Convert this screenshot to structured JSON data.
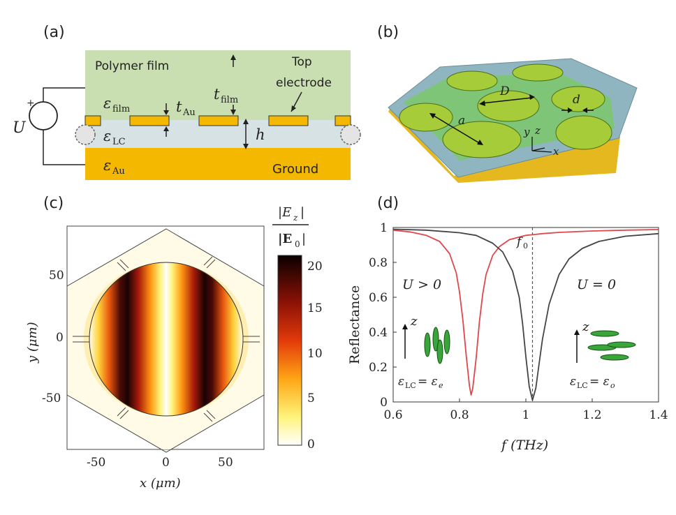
{
  "panels": {
    "a": {
      "label": "(a)",
      "polymer_label": "Polymer film",
      "top_electrode_label_1": "Top",
      "top_electrode_label_2": "electrode",
      "ground_label": "Ground",
      "voltage_label": "U",
      "voltage_sign": "+",
      "eps_film": "ε",
      "eps_film_sub": "film",
      "eps_lc": "ε",
      "eps_lc_sub": "LC",
      "eps_au": "ε",
      "eps_au_sub": "Au",
      "t_film": "t",
      "t_film_sub": "film",
      "t_au": "t",
      "t_au_sub": "Au",
      "h_label": "h"
    },
    "b": {
      "label": "(b)",
      "D_label": "D",
      "d_label": "d",
      "a_label": "a",
      "axis_x": "x",
      "axis_y": "y",
      "axis_z": "z"
    },
    "c": {
      "label": "(c)",
      "xlabel": "x (μm)",
      "ylabel": "y (μm)",
      "x_ticks": [
        "-50",
        "0",
        "50"
      ],
      "y_ticks": [
        "50",
        "0",
        "-50"
      ],
      "colorbar_title_num": "|E",
      "colorbar_title_num_sub": "z",
      "colorbar_title_num_end": "|",
      "colorbar_title_den": "|E",
      "colorbar_title_den_sub": "0",
      "colorbar_title_den_end": "|",
      "colorbar_ticks": [
        "20",
        "15",
        "10",
        "5",
        "0"
      ]
    },
    "d": {
      "label": "(d)",
      "f0_label": "f",
      "f0_sub": "0",
      "u_pos_label": "U > 0",
      "u_zero_label": "U = 0",
      "z_label": "z",
      "eq_e": "ε",
      "eq_e_sub": "LC",
      "eq_e_rhs": "= ε",
      "eq_e_rhs_sub": "e",
      "eq_o": "ε",
      "eq_o_sub": "LC",
      "eq_o_rhs": "= ε",
      "eq_o_rhs_sub": "o"
    }
  },
  "chart_data": {
    "type": "line",
    "xlabel": "f (THz)",
    "ylabel": "Reflectance",
    "xlim": [
      0.6,
      1.4
    ],
    "ylim": [
      0,
      1
    ],
    "x_ticks": [
      0.6,
      0.8,
      1.0,
      1.2,
      1.4
    ],
    "x_tick_labels": [
      "0.6",
      "0.8",
      "1",
      "1.2",
      "1.4"
    ],
    "y_ticks": [
      0,
      0.2,
      0.4,
      0.6,
      0.8,
      1
    ],
    "y_tick_labels": [
      "0",
      "0.2",
      "0.4",
      "0.6",
      "0.8",
      "1"
    ],
    "f0": 1.02,
    "series": [
      {
        "color": "#e0474c",
        "x": [
          0.6,
          0.65,
          0.7,
          0.74,
          0.77,
          0.79,
          0.8,
          0.81,
          0.82,
          0.83,
          0.835,
          0.84,
          0.85,
          0.86,
          0.87,
          0.88,
          0.9,
          0.92,
          0.95,
          1.0,
          1.05,
          1.1,
          1.2,
          1.3,
          1.4
        ],
        "y": [
          0.985,
          0.975,
          0.955,
          0.92,
          0.85,
          0.74,
          0.63,
          0.47,
          0.27,
          0.09,
          0.04,
          0.08,
          0.25,
          0.46,
          0.62,
          0.73,
          0.84,
          0.89,
          0.93,
          0.955,
          0.965,
          0.972,
          0.98,
          0.985,
          0.988
        ]
      },
      {
        "color": "#444444",
        "x": [
          0.6,
          0.7,
          0.8,
          0.85,
          0.9,
          0.93,
          0.96,
          0.98,
          0.99,
          1.0,
          1.01,
          1.02,
          1.03,
          1.04,
          1.05,
          1.07,
          1.1,
          1.13,
          1.17,
          1.22,
          1.3,
          1.4
        ],
        "y": [
          0.99,
          0.985,
          0.97,
          0.955,
          0.91,
          0.86,
          0.75,
          0.6,
          0.45,
          0.26,
          0.09,
          0.01,
          0.08,
          0.22,
          0.36,
          0.56,
          0.73,
          0.82,
          0.88,
          0.92,
          0.95,
          0.965
        ]
      }
    ]
  },
  "colors": {
    "polymer": "#c9dfb2",
    "gold": "#f2b705",
    "lc": "#cfdde0",
    "slab_blue": "#8fb1c4",
    "disk_green": "#9bc644",
    "cell_green": "#78c070",
    "red_curve": "#e0474c",
    "black_curve": "#444444"
  }
}
